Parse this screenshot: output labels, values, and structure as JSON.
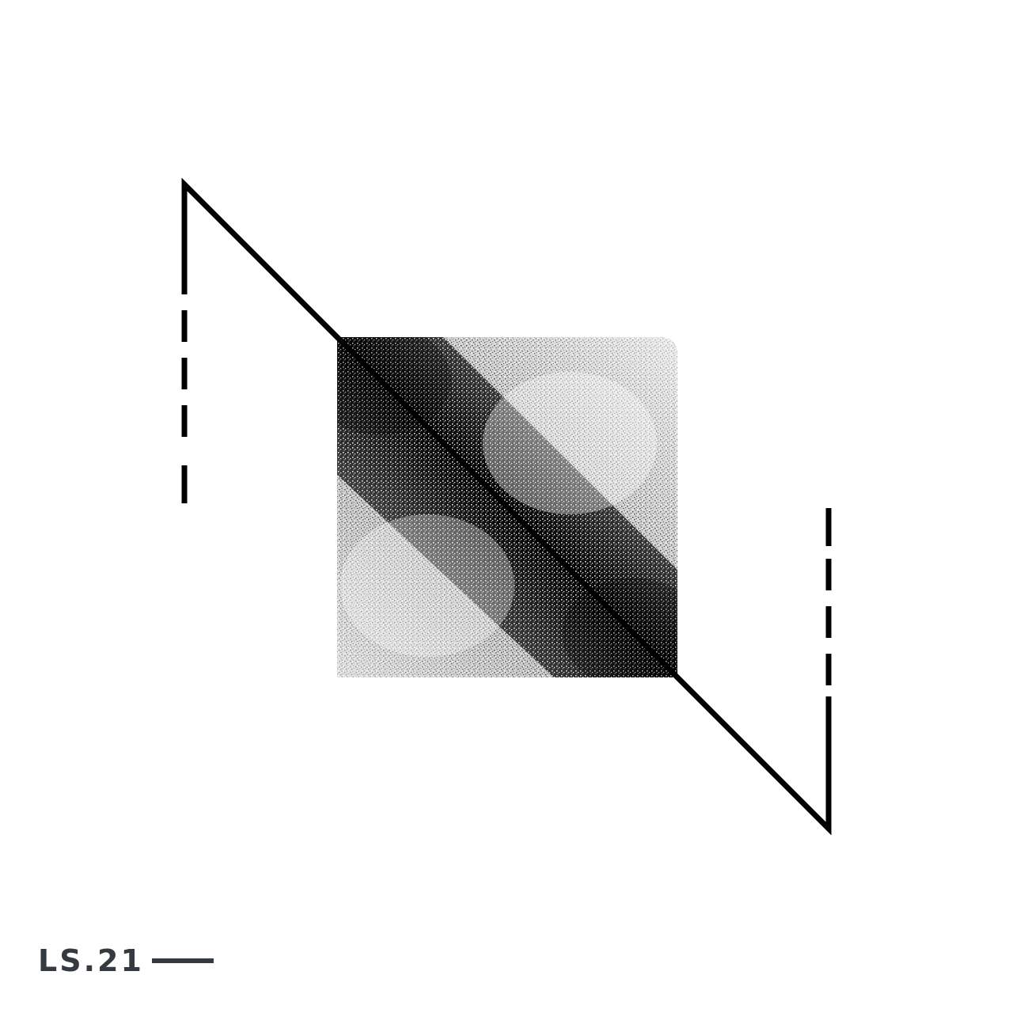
{
  "artwork": {
    "caption": "LS.21",
    "colors": {
      "background": "#ffffff",
      "ink": "#000000",
      "caption": "#343a3f"
    },
    "icons": [
      "zigzag-line-icon",
      "noise-square-icon",
      "dashed-line-icon",
      "caption-dash-icon"
    ]
  }
}
